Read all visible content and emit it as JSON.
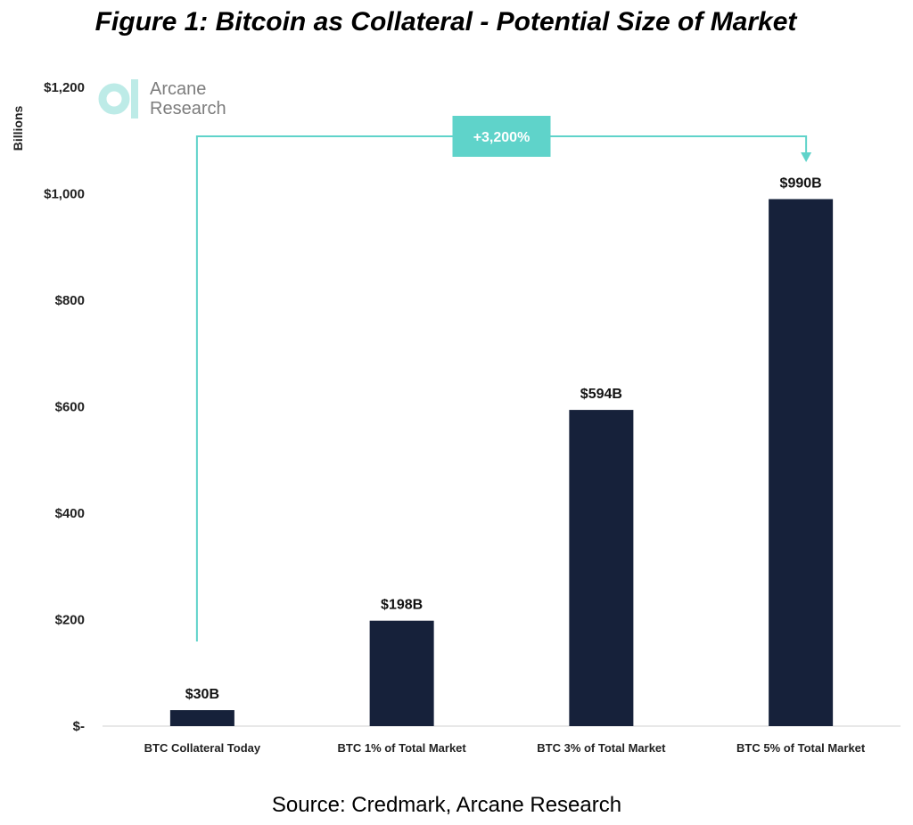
{
  "chart_data": {
    "type": "bar",
    "title": "Figure 1: Bitcoin as Collateral - Potential Size of Market",
    "ylabel": "Billions",
    "xlabel": "",
    "ylim": [
      0,
      1200
    ],
    "yticks": [
      0,
      200,
      400,
      600,
      800,
      1000,
      1200
    ],
    "ytick_labels": [
      "$-",
      "$200",
      "$400",
      "$600",
      "$800",
      "$1,000",
      "$1,200"
    ],
    "categories": [
      "BTC Collateral Today",
      "BTC 1% of Total Market",
      "BTC 3% of Total Market",
      "BTC 5% of Total Market"
    ],
    "values": [
      30,
      198,
      594,
      990
    ],
    "data_labels": [
      "$30B",
      "$198B",
      "$594B",
      "$990B"
    ],
    "grid": false,
    "annotation": {
      "text": "+3,200%",
      "from_category": 0,
      "to_category": 3
    },
    "source": "Source: Credmark, Arcane Research"
  },
  "logo": {
    "line1": "Arcane",
    "line2": "Research"
  },
  "colors": {
    "bar": "#16213a",
    "accent": "#5fd3ca",
    "logo_icon": "#bdebe7"
  }
}
